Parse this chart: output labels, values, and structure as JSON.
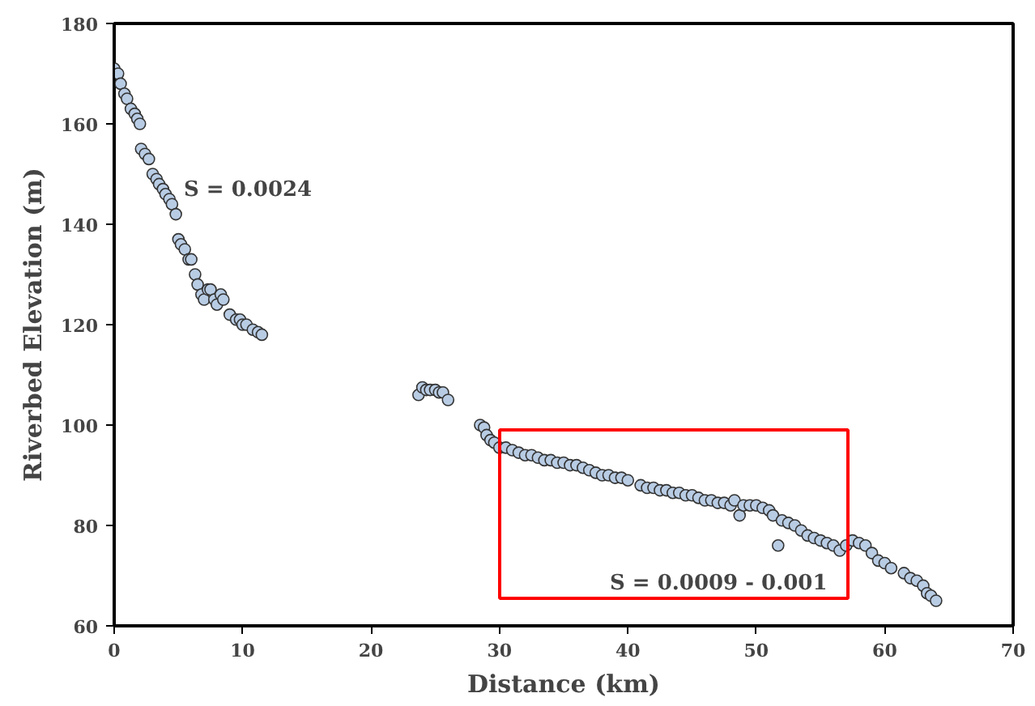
{
  "chart_data": {
    "type": "scatter",
    "xlabel": "Distance (km)",
    "ylabel": "Riverbed Elevation (m)",
    "xlim": [
      0,
      70
    ],
    "ylim": [
      60,
      180
    ],
    "xticks": [
      0,
      10,
      20,
      30,
      40,
      50,
      60,
      70
    ],
    "yticks": [
      60,
      80,
      100,
      120,
      140,
      160,
      180
    ],
    "grid": false,
    "marker": "circle",
    "series": [
      {
        "color": "#b8cce4",
        "x": [
          0,
          0.3,
          0.5,
          0.8,
          1,
          1.3,
          1.6,
          1.8,
          2,
          2.1,
          2.4,
          2.7,
          3,
          3.3,
          3.5,
          3.8,
          4,
          4.3,
          4.5,
          4.8,
          5,
          5.2,
          5.5,
          5.8,
          6,
          6.3,
          6.5,
          6.8,
          7,
          7.3,
          7.5,
          7.8,
          8,
          8.3,
          8.5,
          9,
          9.5,
          9.8,
          10,
          10.3,
          10.8,
          11.2,
          11.5,
          23.7,
          24,
          24.3,
          24.6,
          25,
          25.3,
          25.6,
          26,
          28.5,
          28.8,
          29,
          29.3,
          29.6,
          30,
          30.5,
          31,
          31.5,
          32,
          32.5,
          33,
          33.5,
          34,
          34.5,
          35,
          35.5,
          36,
          36.5,
          37,
          37.5,
          38,
          38.5,
          39,
          39.5,
          40,
          41,
          41.5,
          42,
          42.5,
          43,
          43.5,
          44,
          44.5,
          45,
          45.5,
          46,
          46.5,
          47,
          47.5,
          48,
          48.3,
          48.7,
          49,
          49.5,
          50,
          50.5,
          51,
          51.3,
          51.7,
          52,
          52.5,
          53,
          53.5,
          54,
          54.5,
          55,
          55.5,
          56,
          56.5,
          57,
          57.5,
          58,
          58.5,
          59,
          59.5,
          60,
          60.5,
          61.5,
          62,
          62.5,
          63,
          63.3,
          63.6,
          64
        ],
        "values": [
          171,
          170,
          168,
          166,
          165,
          163,
          162,
          161,
          160,
          155,
          154,
          153,
          150,
          149,
          148,
          147,
          146,
          145,
          144,
          142,
          137,
          136,
          135,
          133,
          133,
          130,
          128,
          126,
          125,
          127,
          127,
          125,
          124,
          126,
          125,
          122,
          121,
          121,
          120,
          120,
          119,
          118.5,
          118,
          106,
          107.5,
          107,
          107,
          107,
          106.5,
          106.5,
          105,
          100,
          99.5,
          98,
          97,
          96.5,
          95.5,
          95.5,
          95,
          94.5,
          94,
          94,
          93.5,
          93,
          93,
          92.5,
          92.5,
          92,
          92,
          91.5,
          91,
          90.5,
          90,
          90,
          89.5,
          89.5,
          89,
          88,
          87.5,
          87.5,
          87,
          87,
          86.5,
          86.5,
          86,
          86,
          85.5,
          85,
          85,
          84.5,
          84.5,
          84,
          85,
          82,
          84,
          84,
          84,
          83.5,
          83,
          82,
          76,
          81,
          80.5,
          80,
          79,
          78,
          77.5,
          77,
          76.5,
          76,
          75,
          76,
          77,
          76.5,
          76,
          74.5,
          73,
          72.5,
          71.5,
          70.5,
          69.5,
          69,
          68,
          66.5,
          66,
          65
        ]
      }
    ],
    "annotations": [
      "S = 0.0024",
      "S = 0.0009 - 0.001"
    ]
  }
}
